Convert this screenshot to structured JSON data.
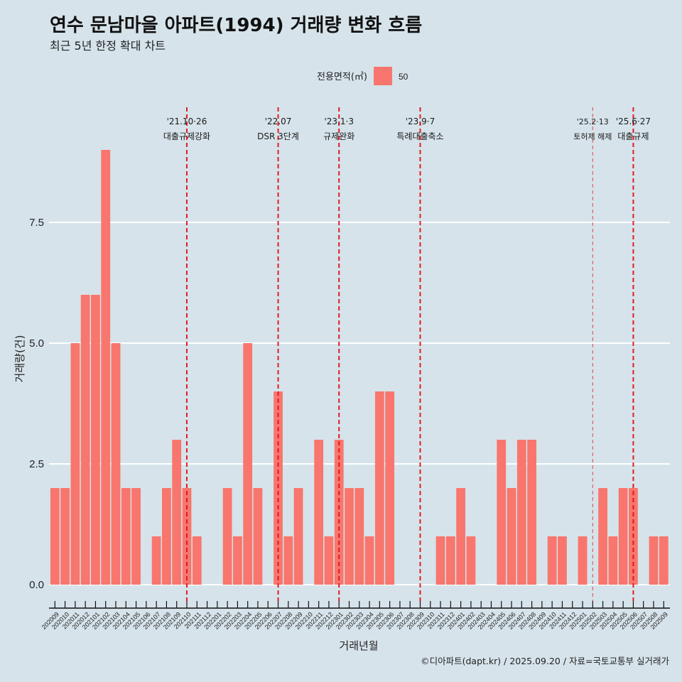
{
  "header": {
    "title": "연수 문남마을 아파트(1994) 거래량 변화 흐름",
    "subtitle": "최근 5년 한정 확대 차트"
  },
  "legend": {
    "title": "전용면적(㎡)",
    "items": [
      {
        "label": "50",
        "color": "#f8766d"
      }
    ]
  },
  "colors": {
    "background": "#d6e3ea",
    "bar": "#f8766d",
    "grid": "#ffffff",
    "annotation_line": "#e3121b",
    "axis": "#111111"
  },
  "chart_data": {
    "type": "bar",
    "title": "연수 문남마을 아파트(1994) 거래량 변화 흐름",
    "subtitle": "최근 5년 한정 확대 차트",
    "xlabel": "거래년월",
    "ylabel": "거래량(건)",
    "ylim": [
      0,
      9
    ],
    "grid": true,
    "legend_position": "top",
    "y_ticks": [
      {
        "value": 0,
        "label": "0.0"
      },
      {
        "value": 2.5,
        "label": "2.5"
      },
      {
        "value": 5,
        "label": "5.0"
      },
      {
        "value": 7.5,
        "label": "7.5"
      }
    ],
    "categories": [
      "202009",
      "202010",
      "202011",
      "202012",
      "202101",
      "202102",
      "202103",
      "202104",
      "202105",
      "202106",
      "202107",
      "202108",
      "202109",
      "202110",
      "202111",
      "202112",
      "202201",
      "202202",
      "202203",
      "202204",
      "202205",
      "202206",
      "202207",
      "202208",
      "202209",
      "202210",
      "202211",
      "202212",
      "202301",
      "202302",
      "202303",
      "202304",
      "202305",
      "202306",
      "202307",
      "202308",
      "202309",
      "202310",
      "202311",
      "202312",
      "202401",
      "202402",
      "202403",
      "202404",
      "202405",
      "202406",
      "202407",
      "202408",
      "202409",
      "202410",
      "202411",
      "202412",
      "202501",
      "202502",
      "202503",
      "202504",
      "202505",
      "202506",
      "202507",
      "202508",
      "202509"
    ],
    "series": [
      {
        "name": "50",
        "values": [
          2,
          2,
          5,
          6,
          6,
          9,
          5,
          2,
          2,
          0,
          1,
          2,
          3,
          2,
          1,
          0,
          0,
          2,
          1,
          5,
          2,
          0,
          4,
          1,
          2,
          0,
          3,
          1,
          3,
          2,
          2,
          1,
          4,
          4,
          0,
          0,
          0,
          0,
          1,
          1,
          2,
          1,
          0,
          0,
          3,
          2,
          3,
          3,
          0,
          1,
          1,
          0,
          1,
          0,
          2,
          1,
          2,
          2,
          0,
          1,
          1
        ]
      }
    ],
    "annotations": [
      {
        "x": "202110",
        "date": "'21.10·26",
        "label": "대출규제강화",
        "line_style": "major"
      },
      {
        "x": "202207",
        "date": "'22.07",
        "label": "DSR 3단계",
        "line_style": "major"
      },
      {
        "x": "202301",
        "date": "'23.1·3",
        "label": "규제완화",
        "line_style": "major"
      },
      {
        "x": "202309",
        "date": "'23.9·7",
        "label": "특례대출축소",
        "line_style": "major"
      },
      {
        "x": "202502",
        "date": "'25.2·13",
        "label": "토허제 해제",
        "line_style": "minor"
      },
      {
        "x": "202506",
        "date": "'25.6·27",
        "label": "대출규제",
        "line_style": "major"
      }
    ]
  },
  "footer": {
    "text": "©디아파트(dapt.kr) / 2025.09.20 / 자료=국토교통부 실거래가"
  }
}
